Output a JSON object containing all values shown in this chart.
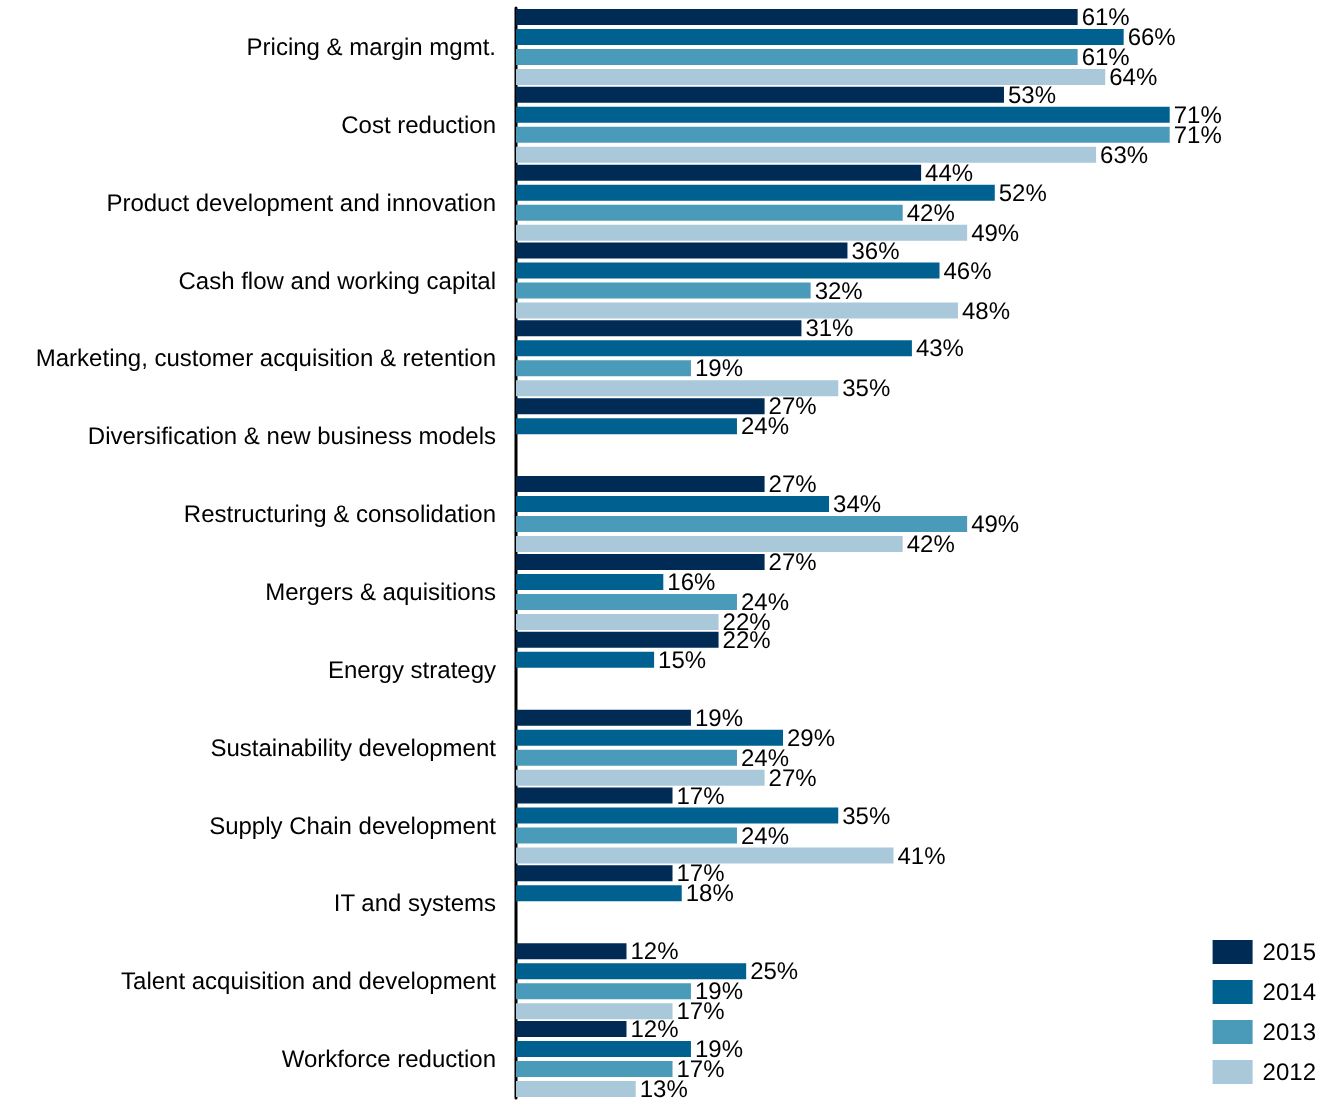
{
  "chart_data": {
    "type": "bar",
    "orientation": "horizontal",
    "legend": "bottom right",
    "categories": [
      "Pricing & margin mgmt.",
      "Cost reduction",
      "Product development and innovation",
      "Cash flow and working capital",
      "Marketing, customer acquisition & retention",
      "Diversification & new business models",
      "Restructuring & consolidation",
      "Mergers & aquisitions",
      "Energy strategy",
      "Sustainability development",
      "Supply Chain development",
      "IT and systems",
      "Talent acquisition and development",
      "Workforce reduction"
    ],
    "series": [
      {
        "name": "2015",
        "color": "#002b54",
        "values": [
          61,
          53,
          44,
          36,
          31,
          27,
          27,
          27,
          22,
          19,
          17,
          17,
          12,
          12
        ],
        "value_labels": [
          "61%",
          "53%",
          "44%",
          "36%",
          "31%",
          "27%",
          "27%",
          "27%",
          "22%",
          "19%",
          "17%",
          "17%",
          "12%",
          "12%"
        ]
      },
      {
        "name": "2014",
        "color": "#00608f",
        "values": [
          66,
          71,
          52,
          46,
          43,
          24,
          34,
          16,
          15,
          29,
          35,
          18,
          25,
          19
        ],
        "value_labels": [
          "66%",
          "71%",
          "52%",
          "46%",
          "43%",
          "24%",
          "34%",
          "16%",
          "15%",
          "29%",
          "35%",
          "18%",
          "25%",
          "19%"
        ]
      },
      {
        "name": "2013",
        "color": "#4a9aba",
        "values": [
          61,
          71,
          42,
          32,
          19,
          null,
          49,
          24,
          null,
          24,
          24,
          null,
          19,
          17
        ],
        "value_labels": [
          "61%",
          "71%",
          "42%",
          "32%",
          "19%",
          null,
          "49%",
          "24%",
          null,
          "24%",
          "24%",
          null,
          "19%",
          "17%"
        ]
      },
      {
        "name": "2012",
        "color": "#a9c8da",
        "values": [
          64,
          63,
          49,
          48,
          35,
          null,
          42,
          22,
          null,
          27,
          41,
          null,
          17,
          13
        ],
        "value_labels": [
          "64%",
          "63%",
          "49%",
          "48%",
          "35%",
          null,
          "42%",
          "22%",
          null,
          "27%",
          "41%",
          null,
          "17%",
          "13%"
        ]
      }
    ]
  }
}
